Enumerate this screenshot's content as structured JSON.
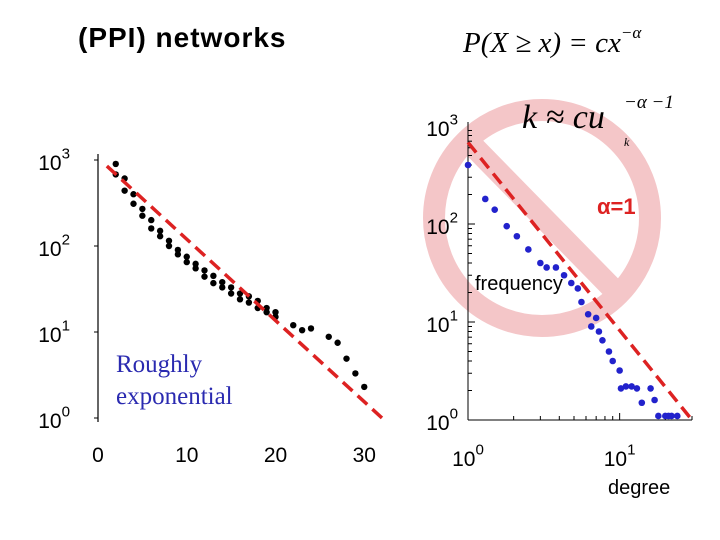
{
  "title": "(PPI) networks",
  "formula_main": {
    "lhs": "P(X ≥ x) = cx",
    "exponent": "−α"
  },
  "formula_k": {
    "lhs": "k ≈ cu",
    "subscript": "k",
    "exponent": "−α −1"
  },
  "annotation_alpha": "α=1",
  "annotation_exponential": [
    "Roughly",
    "exponential"
  ],
  "colors": {
    "fit_line": "#dd2222",
    "points_left": "#000000",
    "points_right": "#2222cc",
    "ban_symbol": "#f4c6c8",
    "exp_label": "#2a2ab0",
    "alpha_label": "#dd2222"
  },
  "chart_data": [
    {
      "type": "scatter",
      "title": "",
      "xlabel": "",
      "ylabel": "",
      "yscale": "log",
      "xlim": [
        0,
        32
      ],
      "ylim": [
        1,
        1000
      ],
      "xticks": [
        "0",
        "10",
        "20",
        "30"
      ],
      "yticks": [
        "10^0",
        "10^1",
        "10^2",
        "10^3"
      ],
      "x": [
        2,
        2,
        3,
        3,
        4,
        4,
        5,
        5,
        6,
        6,
        7,
        7,
        8,
        8,
        9,
        9,
        10,
        10,
        11,
        11,
        12,
        12,
        13,
        13,
        14,
        14,
        15,
        15,
        16,
        16,
        17,
        17,
        18,
        18,
        19,
        19,
        20,
        20,
        22,
        23,
        24,
        26,
        27,
        28,
        29,
        30
      ],
      "y": [
        900,
        680,
        610,
        440,
        400,
        310,
        270,
        225,
        200,
        160,
        150,
        130,
        115,
        100,
        90,
        80,
        75,
        65,
        62,
        55,
        52,
        44,
        45,
        37,
        38,
        33,
        33,
        28,
        28,
        24,
        26,
        22,
        23,
        19,
        19,
        17,
        17,
        15,
        12,
        10.5,
        11,
        8.8,
        7.5,
        4.9,
        3.3,
        2.3
      ],
      "fit_line": {
        "from": [
          1,
          850
        ],
        "to": [
          32,
          1
        ],
        "style": "dashed"
      },
      "annotation": "Roughly exponential"
    },
    {
      "type": "scatter",
      "title": "",
      "xlabel": "degree",
      "ylabel": "frequency",
      "xscale": "log",
      "yscale": "log",
      "xlim": [
        1,
        30
      ],
      "ylim": [
        1,
        1000
      ],
      "xticks": [
        "10^0",
        "10^1"
      ],
      "yticks": [
        "10^0",
        "10^1",
        "10^2",
        "10^3"
      ],
      "x": [
        1,
        1.3,
        1.5,
        1.8,
        2.1,
        2.5,
        3,
        3.3,
        3.8,
        4.3,
        4.8,
        5.3,
        5.6,
        6.2,
        6.5,
        7,
        7.3,
        7.7,
        8.5,
        9,
        10,
        10.2,
        11,
        12,
        13,
        14,
        16,
        17,
        18,
        20,
        21,
        22,
        24
      ],
      "y": [
        400,
        180,
        140,
        95,
        75,
        55,
        40,
        36,
        36,
        30,
        25,
        22,
        16,
        12,
        9,
        11,
        8,
        6.5,
        5,
        4,
        3.2,
        2.1,
        2.2,
        2.2,
        2.1,
        1.5,
        2.1,
        1.6,
        1.1,
        1.1,
        1.1,
        1.1,
        1.1
      ],
      "fit_line": {
        "from": [
          1,
          680
        ],
        "to": [
          30,
          1
        ],
        "style": "dashed"
      },
      "annotation": "α=1"
    }
  ]
}
